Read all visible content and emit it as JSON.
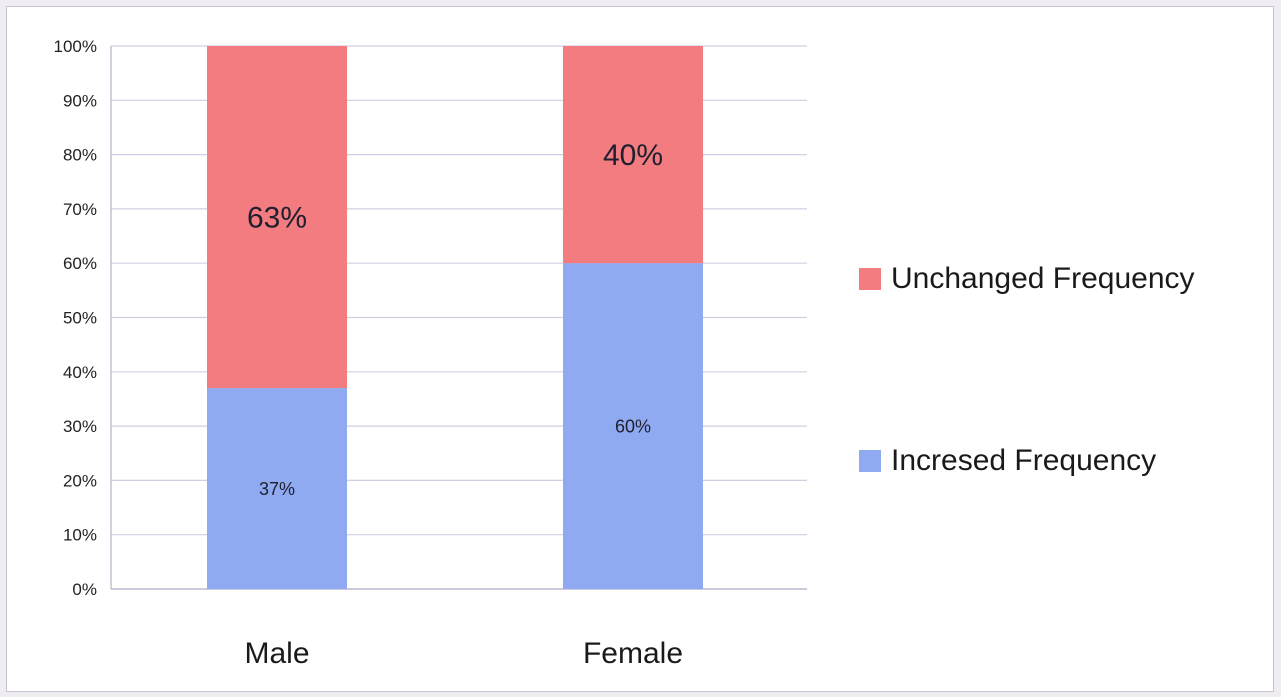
{
  "chart_data": {
    "type": "bar",
    "stacked": true,
    "categories": [
      "Male",
      "Female"
    ],
    "series": [
      {
        "name": "Increased Frequency",
        "legend_label": "Incresed Frequency",
        "color": "#8faaf1",
        "values": [
          37,
          60
        ],
        "labels": [
          "37%",
          "60%"
        ]
      },
      {
        "name": "Unchanged Frequency",
        "legend_label": "Unchanged Frequency",
        "color": "#f27c80",
        "values": [
          63,
          40
        ],
        "labels": [
          "63%",
          "40%"
        ]
      }
    ],
    "ylim": [
      0,
      100
    ],
    "yticks": [
      "0%",
      "10%",
      "20%",
      "30%",
      "40%",
      "50%",
      "60%",
      "70%",
      "80%",
      "90%",
      "100%"
    ],
    "grid": true,
    "legend_position": "right"
  },
  "legend": {
    "items": [
      {
        "label": "Unchanged Frequency",
        "color": "#f27c80"
      },
      {
        "label": "Incresed Frequency",
        "color": "#8faaf1"
      }
    ]
  }
}
